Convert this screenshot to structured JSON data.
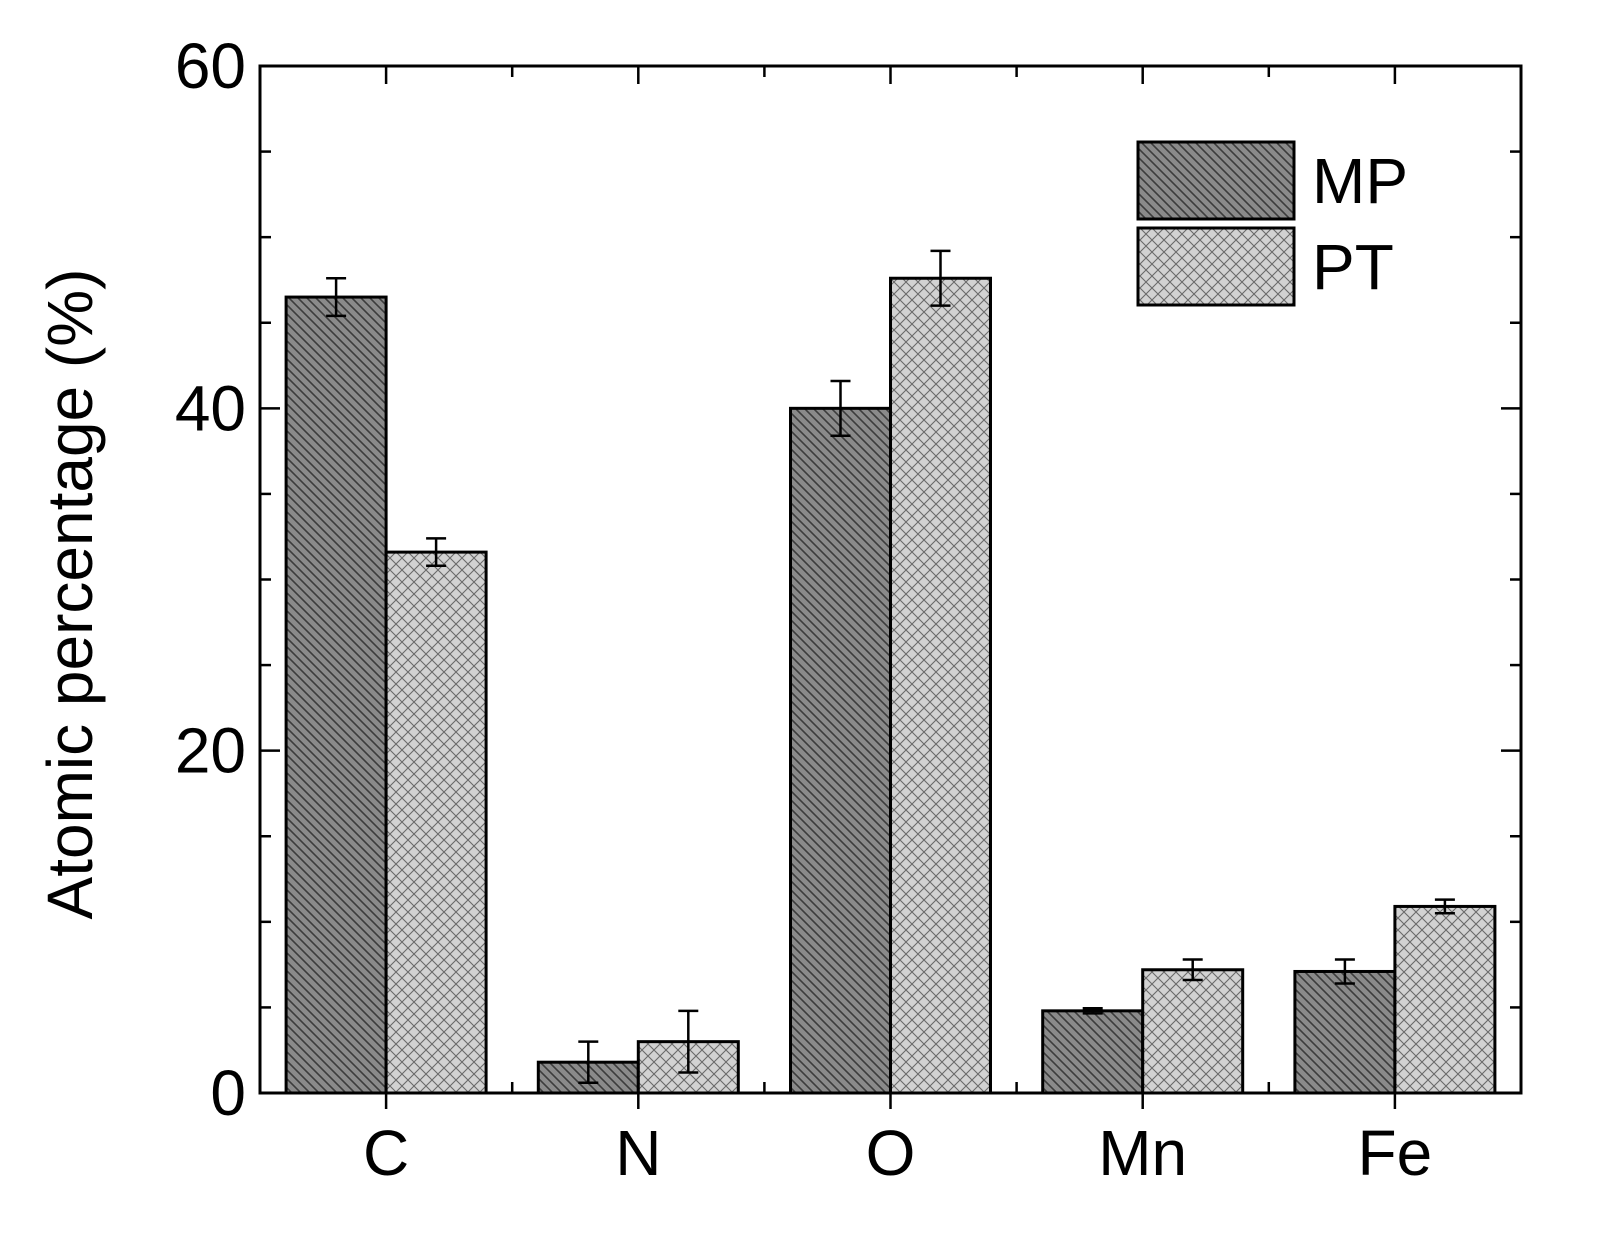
{
  "chart_data": {
    "type": "bar",
    "title": "",
    "xlabel": "",
    "ylabel": "Atomic percentage (%)",
    "ylim": [
      0,
      60
    ],
    "yticks": [
      "0",
      "20",
      "40",
      "60"
    ],
    "categories": [
      "C",
      "N",
      "O",
      "Mn",
      "Fe"
    ],
    "series": [
      {
        "name": "MP",
        "values": [
          46.5,
          1.8,
          40.0,
          4.8,
          7.1
        ],
        "errors": [
          1.1,
          1.2,
          1.6,
          0.15,
          0.7
        ],
        "color": "#8a8a8a",
        "pattern": "diagonal-hatch"
      },
      {
        "name": "PT",
        "values": [
          31.6,
          3.0,
          47.6,
          7.2,
          10.9
        ],
        "errors": [
          0.8,
          1.8,
          1.6,
          0.6,
          0.4
        ],
        "color": "#cfcfcf",
        "pattern": "crosshatch"
      }
    ],
    "legend": "top-right",
    "grid": false
  }
}
